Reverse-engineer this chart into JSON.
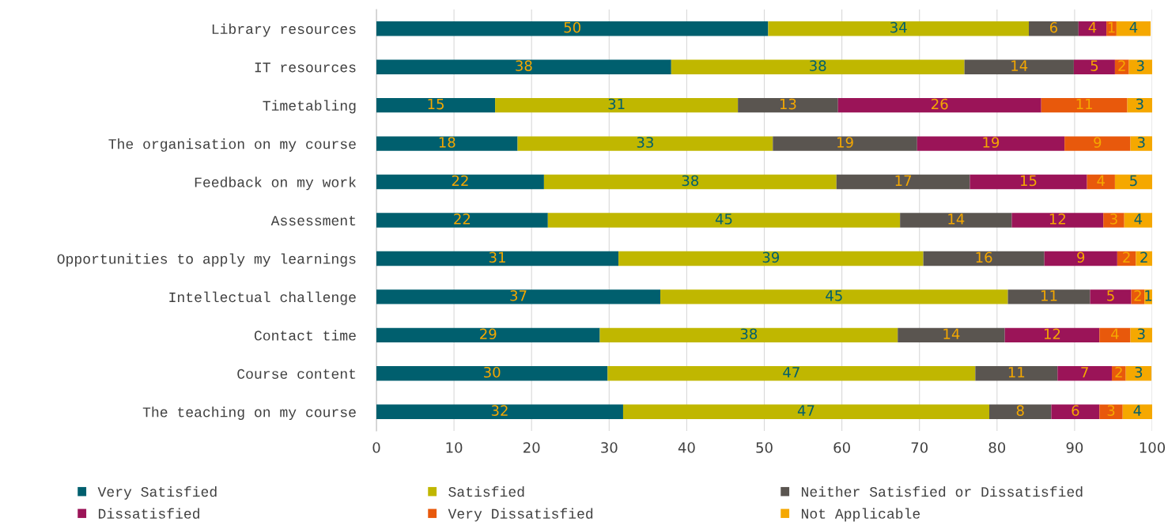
{
  "chart_data": {
    "type": "bar",
    "orientation": "horizontal",
    "stacked": true,
    "categories": [
      "Library resources",
      "IT resources",
      "Timetabling",
      "The organisation on my course",
      "Feedback on my work",
      "Assessment",
      "Opportunities to apply my learnings",
      "Intellectual challenge",
      "Contact time",
      "Course content",
      "The teaching on my course"
    ],
    "series": [
      {
        "name": "Very Satisfied",
        "color": "#005f6e",
        "values": [
          50.5,
          38.0,
          15.3,
          18.2,
          21.6,
          22.1,
          31.2,
          36.6,
          28.8,
          29.8,
          31.8
        ],
        "value_labels": [
          "50",
          "38",
          "15",
          "18",
          "22",
          "22",
          "31",
          "37",
          "29",
          "30",
          "32"
        ]
      },
      {
        "name": "Satisfied",
        "color": "#c0b700",
        "values": [
          33.6,
          37.8,
          31.3,
          32.9,
          37.7,
          45.4,
          39.3,
          44.8,
          38.4,
          47.4,
          47.2
        ],
        "value_labels": [
          "34",
          "38",
          "31",
          "33",
          "38",
          "45",
          "39",
          "45",
          "38",
          "47",
          "47"
        ]
      },
      {
        "name": "Neither Satisfied or Dissatisfied",
        "color": "#5a5550",
        "values": [
          6.4,
          14.1,
          12.9,
          18.6,
          17.2,
          14.4,
          15.6,
          10.6,
          13.8,
          10.6,
          8.0
        ],
        "value_labels": [
          "6",
          "14",
          "13",
          "19",
          "17",
          "14",
          "16",
          "11",
          "14",
          "11",
          "8"
        ]
      },
      {
        "name": "Dissatisfied",
        "color": "#9b1458",
        "values": [
          3.6,
          5.3,
          26.2,
          19.0,
          15.1,
          11.8,
          9.4,
          5.3,
          12.2,
          7.0,
          6.2
        ],
        "value_labels": [
          "4",
          "5",
          "26",
          "19",
          "15",
          "12",
          "9",
          "5",
          "12",
          "7",
          "6"
        ]
      },
      {
        "name": "Very Dissatisfied",
        "color": "#e8590c",
        "values": [
          1.3,
          1.8,
          11.1,
          8.5,
          3.6,
          2.7,
          2.4,
          1.7,
          4.0,
          1.8,
          3.0
        ],
        "value_labels": [
          "1",
          "2",
          "11",
          "9",
          "4",
          "3",
          "2",
          "2",
          "4",
          "2",
          "3"
        ]
      },
      {
        "name": "Not Applicable",
        "color": "#f5a800",
        "values": [
          4.4,
          3.0,
          3.2,
          2.8,
          4.8,
          3.6,
          2.1,
          1.0,
          2.8,
          3.3,
          3.8
        ],
        "value_labels": [
          "4",
          "3",
          "3",
          "3",
          "5",
          "4",
          "2",
          "1",
          "3",
          "3",
          "4"
        ]
      }
    ],
    "xlim": [
      0,
      100
    ],
    "xticks": [
      0,
      10,
      20,
      30,
      40,
      50,
      60,
      70,
      80,
      90,
      100
    ],
    "grid": "x",
    "legend": "bottom"
  }
}
